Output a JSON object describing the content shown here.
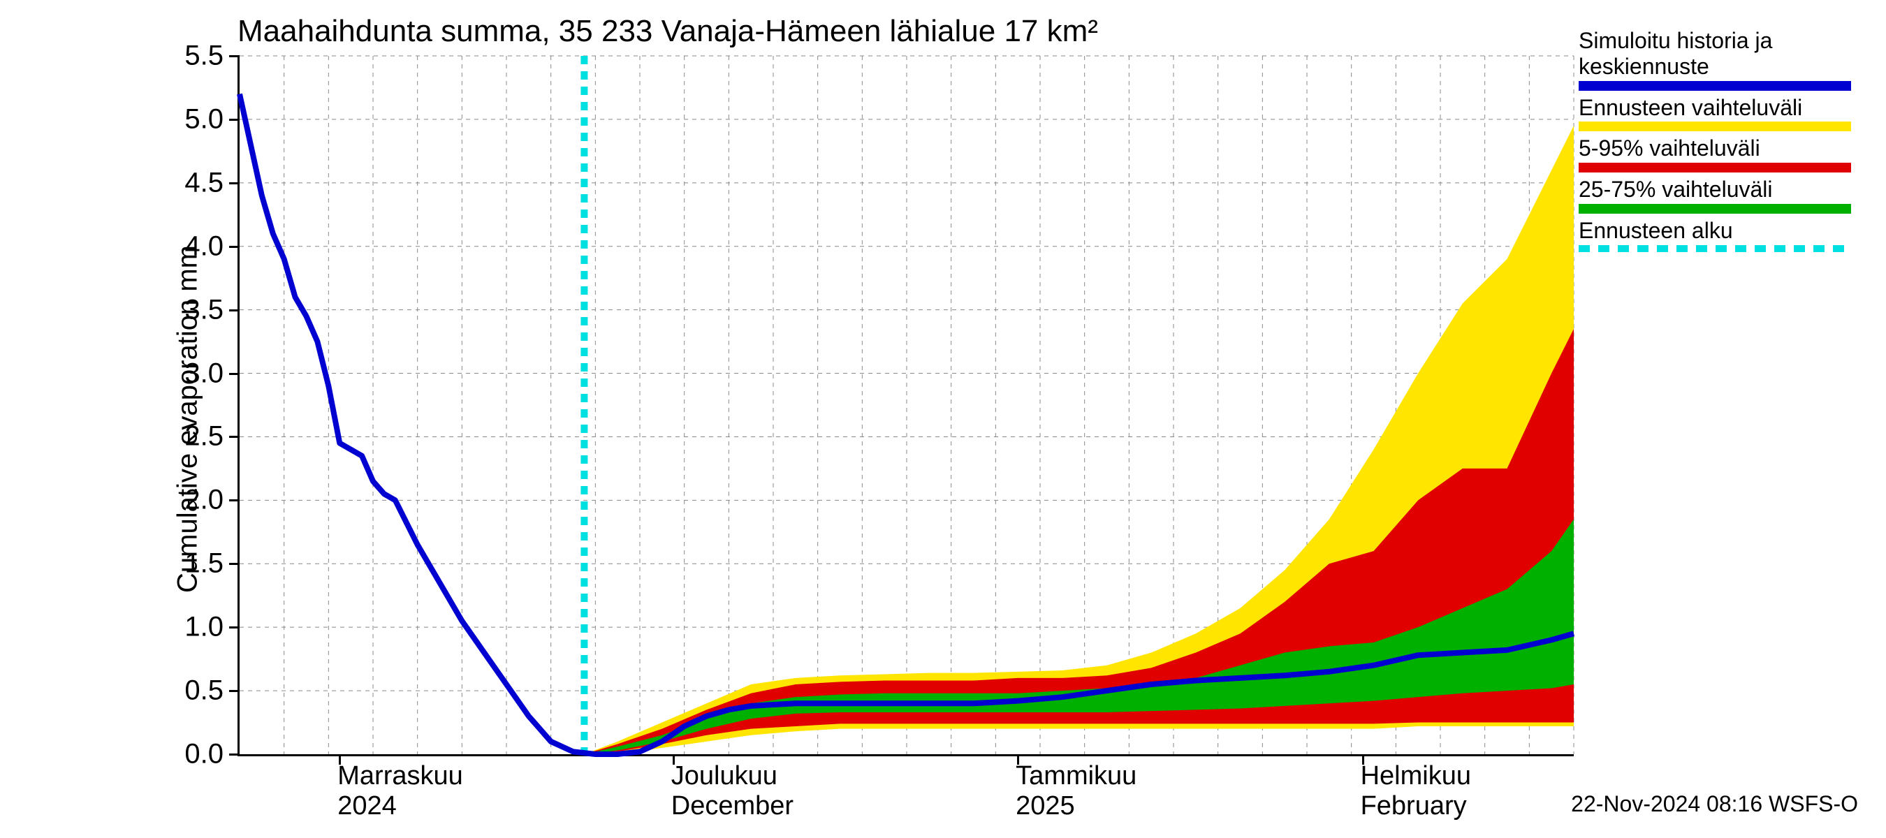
{
  "chart": {
    "type": "line-with-bands",
    "title": "Maahaihdunta summa, 35 233 Vanaja-Hämeen lähialue 17 km²",
    "ylabel": "Cumulative evaporation   mm",
    "title_fontsize": 44,
    "label_fontsize": 40,
    "tick_fontsize": 40,
    "legend_fontsize": 32,
    "footer_fontsize": 32,
    "background_color": "#ffffff",
    "grid_color": "#888888",
    "axis_color": "#000000",
    "ylim": [
      0.0,
      5.5
    ],
    "yticks": [
      0.0,
      0.5,
      1.0,
      1.5,
      2.0,
      2.5,
      3.0,
      3.5,
      4.0,
      4.5,
      5.0,
      5.5
    ],
    "ytick_labels": [
      "0.0",
      "0.5",
      "1.0",
      "1.5",
      "2.0",
      "2.5",
      "3.0",
      "3.5",
      "4.0",
      "4.5",
      "5.0",
      "5.5"
    ],
    "xlim": [
      0,
      120
    ],
    "minor_xgrid": [
      0,
      4,
      8,
      12,
      16,
      20,
      24,
      28,
      32,
      36,
      40,
      44,
      48,
      52,
      56,
      60,
      64,
      68,
      72,
      76,
      80,
      84,
      88,
      92,
      96,
      100,
      104,
      108,
      112,
      116,
      120
    ],
    "major_xticks": [
      {
        "x": 9,
        "label_top": "Marraskuu",
        "label_bot": "2024"
      },
      {
        "x": 39,
        "label_top": "Joulukuu",
        "label_bot": "December"
      },
      {
        "x": 70,
        "label_top": "Tammikuu",
        "label_bot": "2025"
      },
      {
        "x": 101,
        "label_top": "Helmikuu",
        "label_bot": "February"
      }
    ],
    "forecast_start_x": 31,
    "colors": {
      "history_line": "#0000d0",
      "band_full": "#ffe500",
      "band_5_95": "#e00000",
      "band_25_75": "#00b000",
      "forecast_line": "#00e0e0"
    },
    "line_width_main": 8,
    "dash_pattern": "12,10",
    "band_full": {
      "x": [
        31,
        34,
        38,
        42,
        46,
        50,
        54,
        58,
        62,
        66,
        70,
        74,
        78,
        82,
        86,
        90,
        94,
        98,
        102,
        106,
        110,
        114,
        118,
        120
      ],
      "upper": [
        0.0,
        0.1,
        0.25,
        0.4,
        0.55,
        0.6,
        0.62,
        0.63,
        0.64,
        0.64,
        0.65,
        0.66,
        0.7,
        0.8,
        0.95,
        1.15,
        1.45,
        1.85,
        2.4,
        3.0,
        3.55,
        3.9,
        4.6,
        4.95
      ],
      "lower": [
        0.0,
        0.0,
        0.05,
        0.1,
        0.15,
        0.18,
        0.2,
        0.2,
        0.2,
        0.2,
        0.2,
        0.2,
        0.2,
        0.2,
        0.2,
        0.2,
        0.2,
        0.2,
        0.2,
        0.22,
        0.22,
        0.22,
        0.22,
        0.22
      ]
    },
    "band_5_95": {
      "x": [
        31,
        34,
        38,
        42,
        46,
        50,
        54,
        58,
        62,
        66,
        70,
        74,
        78,
        82,
        86,
        90,
        94,
        98,
        102,
        106,
        110,
        114,
        118,
        120
      ],
      "upper": [
        0.0,
        0.08,
        0.2,
        0.35,
        0.48,
        0.55,
        0.57,
        0.58,
        0.58,
        0.58,
        0.6,
        0.6,
        0.62,
        0.68,
        0.8,
        0.95,
        1.2,
        1.5,
        1.6,
        2.0,
        2.25,
        2.25,
        3.0,
        3.35
      ],
      "lower": [
        0.0,
        0.02,
        0.08,
        0.15,
        0.2,
        0.22,
        0.24,
        0.24,
        0.24,
        0.24,
        0.24,
        0.24,
        0.24,
        0.24,
        0.24,
        0.24,
        0.24,
        0.24,
        0.24,
        0.25,
        0.25,
        0.25,
        0.25,
        0.25
      ]
    },
    "band_25_75": {
      "x": [
        31,
        34,
        38,
        42,
        46,
        50,
        54,
        58,
        62,
        66,
        70,
        74,
        78,
        82,
        86,
        90,
        94,
        98,
        102,
        106,
        110,
        114,
        118,
        120
      ],
      "upper": [
        0.0,
        0.06,
        0.15,
        0.28,
        0.4,
        0.45,
        0.47,
        0.48,
        0.48,
        0.48,
        0.48,
        0.5,
        0.52,
        0.55,
        0.6,
        0.7,
        0.8,
        0.85,
        0.88,
        1.0,
        1.15,
        1.3,
        1.6,
        1.85
      ],
      "lower": [
        0.0,
        0.03,
        0.1,
        0.2,
        0.28,
        0.32,
        0.33,
        0.33,
        0.33,
        0.33,
        0.33,
        0.33,
        0.33,
        0.34,
        0.35,
        0.36,
        0.38,
        0.4,
        0.42,
        0.45,
        0.48,
        0.5,
        0.52,
        0.55
      ]
    },
    "main_line": {
      "x": [
        0,
        1,
        2,
        3,
        4,
        5,
        6,
        7,
        8,
        9,
        10,
        11,
        12,
        13,
        14,
        16,
        18,
        20,
        22,
        24,
        26,
        28,
        30,
        32,
        34,
        36,
        38,
        40,
        42,
        44,
        46,
        50,
        54,
        58,
        62,
        66,
        70,
        74,
        78,
        82,
        86,
        90,
        94,
        98,
        102,
        106,
        110,
        114,
        118,
        120
      ],
      "y": [
        5.2,
        4.8,
        4.4,
        4.1,
        3.9,
        3.6,
        3.45,
        3.25,
        2.9,
        2.45,
        2.4,
        2.35,
        2.15,
        2.05,
        2.0,
        1.65,
        1.35,
        1.05,
        0.8,
        0.55,
        0.3,
        0.1,
        0.02,
        0.0,
        0.0,
        0.02,
        0.1,
        0.22,
        0.3,
        0.35,
        0.38,
        0.4,
        0.4,
        0.4,
        0.4,
        0.4,
        0.42,
        0.45,
        0.5,
        0.55,
        0.58,
        0.6,
        0.62,
        0.65,
        0.7,
        0.78,
        0.8,
        0.82,
        0.9,
        0.95
      ]
    },
    "legend": [
      {
        "label": "Simuloitu historia ja keskiennuste",
        "color": "#0000d0",
        "kind": "solid"
      },
      {
        "label": "Ennusteen vaihteluväli",
        "color": "#ffe500",
        "kind": "solid"
      },
      {
        "label": "5-95% vaihteluväli",
        "color": "#e00000",
        "kind": "solid"
      },
      {
        "label": "25-75% vaihteluväli",
        "color": "#00b000",
        "kind": "solid"
      },
      {
        "label": "Ennusteen alku",
        "color": "#00e0e0",
        "kind": "dashed"
      }
    ],
    "footer": "22-Nov-2024 08:16 WSFS-O"
  }
}
